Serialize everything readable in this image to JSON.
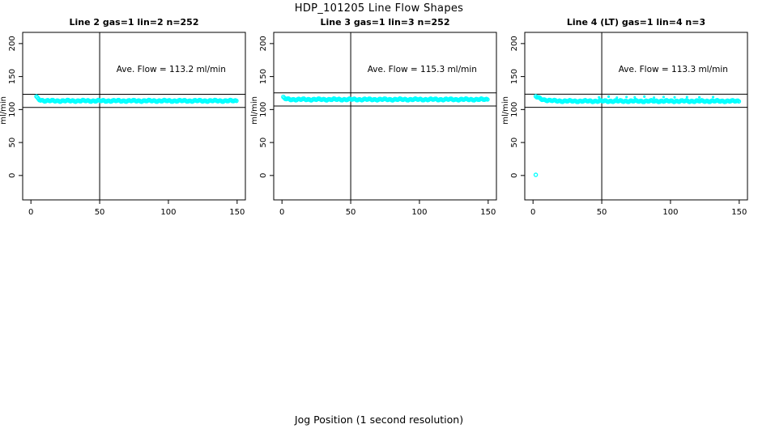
{
  "page": {
    "title": "HDP_101205  Line Flow Shapes",
    "xlabel": "Jog Position (1 second resolution)",
    "background": "#ffffff",
    "point_color": "#00ffff",
    "line_color": "#000000"
  },
  "chart_data": [
    {
      "type": "scatter",
      "title": "Line 2 gas=1 lin=2 n=252",
      "n": 252,
      "ave_flow": 113.2,
      "annotation": {
        "text": "Ave. Flow =  113.2  ml/min",
        "x": 102,
        "y": 157
      },
      "ylabel": "ml/min",
      "xticks": [
        0,
        50,
        100,
        150
      ],
      "yticks": [
        0,
        50,
        100,
        150,
        200
      ],
      "xlim": [
        -6,
        156
      ],
      "ylim": [
        -37,
        217
      ],
      "grid": false,
      "vline_x": 50,
      "hlines": [
        123.2,
        103.2
      ],
      "band": {
        "x_start": 4,
        "x_end": 150,
        "step": 0.75,
        "level": 113.2,
        "start_level": 119,
        "decay": 2
      },
      "extra_points": [],
      "point_color": "#00ffff"
    },
    {
      "type": "scatter",
      "title": "Line 3 gas=1 lin=3 n=252",
      "n": 252,
      "ave_flow": 115.3,
      "annotation": {
        "text": "Ave. Flow =  115.3  ml/min",
        "x": 102,
        "y": 157
      },
      "ylabel": "ml/min",
      "xticks": [
        0,
        50,
        100,
        150
      ],
      "yticks": [
        0,
        50,
        100,
        150,
        200
      ],
      "xlim": [
        -6,
        156
      ],
      "ylim": [
        -37,
        217
      ],
      "grid": false,
      "vline_x": 50,
      "hlines": [
        125.3,
        105.3
      ],
      "band": {
        "x_start": 1,
        "x_end": 150,
        "step": 0.75,
        "level": 115.3,
        "start_level": 118,
        "decay": 1.5
      },
      "extra_points": [],
      "point_color": "#00ffff"
    },
    {
      "type": "scatter",
      "title": "Line 4 (LT) gas=1 lin=4 n=3",
      "n": 3,
      "ave_flow": 113.3,
      "annotation": {
        "text": "Ave. Flow =  113.3  ml/min",
        "x": 102,
        "y": 157
      },
      "ylabel": "ml/min",
      "xticks": [
        0,
        50,
        100,
        150
      ],
      "yticks": [
        0,
        50,
        100,
        150,
        200
      ],
      "xlim": [
        -6,
        156
      ],
      "ylim": [
        -37,
        217
      ],
      "grid": false,
      "vline_x": 50,
      "hlines": [
        123.3,
        103.3
      ],
      "band": {
        "x_start": 2,
        "x_end": 150,
        "step": 0.75,
        "level": 112.8,
        "start_level": 120,
        "decay": 5
      },
      "extra_points": [
        {
          "x": 2,
          "y": 1,
          "r": 2.1
        },
        {
          "x": 48,
          "y": 118.5,
          "r": 0.9
        },
        {
          "x": 55,
          "y": 119.5,
          "r": 0.9
        },
        {
          "x": 61,
          "y": 118.0,
          "r": 0.9
        },
        {
          "x": 68,
          "y": 119.0,
          "r": 0.9
        },
        {
          "x": 74,
          "y": 118.5,
          "r": 0.9
        },
        {
          "x": 81,
          "y": 119.5,
          "r": 0.9
        },
        {
          "x": 88,
          "y": 118.0,
          "r": 0.9
        },
        {
          "x": 95,
          "y": 119.0,
          "r": 0.9
        },
        {
          "x": 103,
          "y": 118.5,
          "r": 0.9
        },
        {
          "x": 112,
          "y": 119.0,
          "r": 0.9
        },
        {
          "x": 121,
          "y": 118.5,
          "r": 0.9
        },
        {
          "x": 131,
          "y": 119.0,
          "r": 0.9
        }
      ],
      "point_color": "#00ffff"
    }
  ]
}
